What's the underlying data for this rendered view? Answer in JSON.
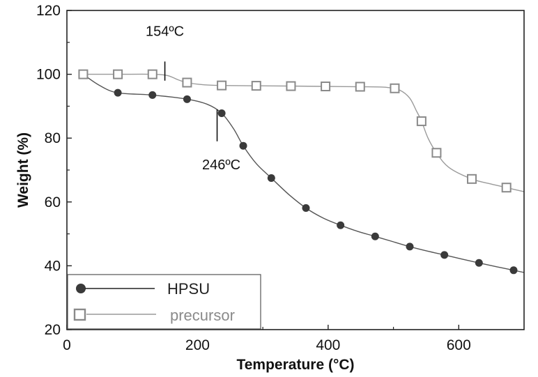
{
  "chart_data": {
    "type": "line",
    "xlabel": "Temperature (°C)",
    "ylabel": "Weight (%)",
    "xlim": [
      0,
      700
    ],
    "ylim": [
      20,
      120
    ],
    "xticks": [
      "0",
      "200",
      "400",
      "600"
    ],
    "yticks": [
      "20",
      "40",
      "60",
      "80",
      "100",
      "120"
    ],
    "x_tick_values": [
      0,
      200,
      400,
      600
    ],
    "y_tick_values": [
      20,
      40,
      60,
      80,
      100,
      120
    ],
    "grid": false,
    "legend_position": "bottom-left",
    "series": [
      {
        "name": "HPSU",
        "marker": "filled-circle",
        "color": "#3a3a3a",
        "line_color": "#555555",
        "points": [
          {
            "x": 25,
            "y": 100
          },
          {
            "x": 78,
            "y": 94.2
          },
          {
            "x": 131,
            "y": 93.5
          },
          {
            "x": 184,
            "y": 92.2
          },
          {
            "x": 237,
            "y": 87.8
          },
          {
            "x": 270,
            "y": 77.6
          },
          {
            "x": 313,
            "y": 67.5
          },
          {
            "x": 366,
            "y": 58.1
          },
          {
            "x": 419,
            "y": 52.7
          },
          {
            "x": 472,
            "y": 49.2
          },
          {
            "x": 525,
            "y": 46.0
          },
          {
            "x": 578,
            "y": 43.4
          },
          {
            "x": 631,
            "y": 40.9
          },
          {
            "x": 684,
            "y": 38.6
          }
        ],
        "curve": [
          [
            25,
            100
          ],
          [
            50,
            96.5
          ],
          [
            78,
            94.2
          ],
          [
            131,
            93.5
          ],
          [
            184,
            92.2
          ],
          [
            215,
            90.6
          ],
          [
            237,
            87.8
          ],
          [
            255,
            83.0
          ],
          [
            270,
            77.6
          ],
          [
            290,
            72.0
          ],
          [
            313,
            67.5
          ],
          [
            340,
            62.3
          ],
          [
            366,
            58.1
          ],
          [
            392,
            55.0
          ],
          [
            419,
            52.7
          ],
          [
            445,
            50.8
          ],
          [
            472,
            49.2
          ],
          [
            500,
            47.5
          ],
          [
            525,
            46.0
          ],
          [
            552,
            44.6
          ],
          [
            578,
            43.4
          ],
          [
            605,
            42.1
          ],
          [
            631,
            40.9
          ],
          [
            658,
            39.7
          ],
          [
            684,
            38.6
          ],
          [
            700,
            37.9
          ]
        ]
      },
      {
        "name": "precursor",
        "marker": "open-square",
        "color": "#8a8a8a",
        "line_color": "#9a9a9a",
        "points": [
          {
            "x": 25,
            "y": 100
          },
          {
            "x": 78,
            "y": 100
          },
          {
            "x": 131,
            "y": 100
          },
          {
            "x": 184,
            "y": 97.4
          },
          {
            "x": 237,
            "y": 96.5
          },
          {
            "x": 290,
            "y": 96.4
          },
          {
            "x": 343,
            "y": 96.3
          },
          {
            "x": 396,
            "y": 96.2
          },
          {
            "x": 449,
            "y": 96.1
          },
          {
            "x": 502,
            "y": 95.6
          },
          {
            "x": 543,
            "y": 85.3
          },
          {
            "x": 566,
            "y": 75.4
          },
          {
            "x": 620,
            "y": 67.2
          },
          {
            "x": 673,
            "y": 64.5
          }
        ],
        "curve": [
          [
            25,
            100
          ],
          [
            78,
            100
          ],
          [
            131,
            100
          ],
          [
            154,
            99.6
          ],
          [
            170,
            98.3
          ],
          [
            184,
            97.4
          ],
          [
            210,
            96.7
          ],
          [
            237,
            96.5
          ],
          [
            290,
            96.4
          ],
          [
            343,
            96.3
          ],
          [
            396,
            96.2
          ],
          [
            449,
            96.1
          ],
          [
            490,
            95.9
          ],
          [
            510,
            95.0
          ],
          [
            525,
            92.5
          ],
          [
            535,
            88.6
          ],
          [
            543,
            85.3
          ],
          [
            553,
            80.0
          ],
          [
            566,
            75.4
          ],
          [
            585,
            70.8
          ],
          [
            620,
            67.2
          ],
          [
            650,
            65.6
          ],
          [
            673,
            64.5
          ],
          [
            700,
            63.2
          ]
        ]
      }
    ],
    "annotations": [
      {
        "text": "154ºC",
        "x": 150,
        "line_y": [
          98,
          104
        ]
      },
      {
        "text": "246ºC",
        "x": 230,
        "line_y": [
          79,
          89
        ]
      }
    ]
  }
}
